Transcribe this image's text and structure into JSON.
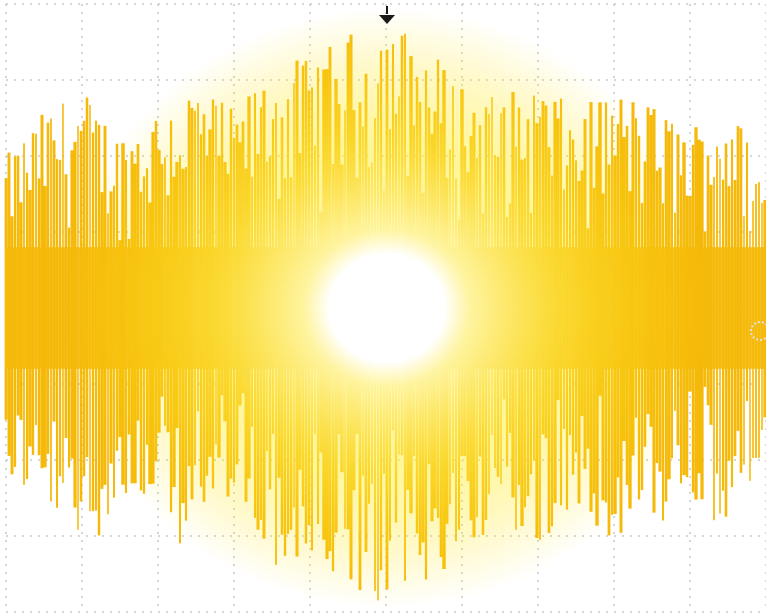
{
  "screen": {
    "background_color": "#ffffff",
    "grid_color": "#c8c8c8",
    "trace_color": "#f5b90a",
    "glow_color": "#fff26a",
    "core_color": "#ffffff",
    "marker_color": "#1a1a1a",
    "trigger_marker_icon": "down-arrow-marker-icon",
    "level_marker_icon": "right-edge-circle-marker-icon"
  },
  "chart_data": {
    "type": "area",
    "title": "",
    "xlabel": "",
    "ylabel": "",
    "grid": true,
    "grid_divisions": {
      "horizontal": 10,
      "vertical": 8
    },
    "xlim": [
      0,
      10
    ],
    "ylim": [
      -4,
      4
    ],
    "series": [
      {
        "name": "",
        "description_of_shape": "noise burst centered at 0, peak envelope about +/-3.8 divisions",
        "x": [
          0,
          0.5,
          1,
          1.5,
          2,
          2.5,
          3,
          3.5,
          4,
          4.5,
          5,
          5.5,
          6,
          6.5,
          7,
          7.5,
          8,
          8.5,
          9,
          9.5,
          10
        ],
        "upper_envelope": [
          2.0,
          2.6,
          2.9,
          2.3,
          2.7,
          3.0,
          2.6,
          3.2,
          3.3,
          3.6,
          3.9,
          3.5,
          3.0,
          2.8,
          3.0,
          2.6,
          2.9,
          2.7,
          2.4,
          2.8,
          1.7
        ],
        "lower_envelope": [
          -2.2,
          -2.8,
          -3.4,
          -2.5,
          -3.0,
          -3.2,
          -2.4,
          -3.5,
          -3.6,
          -3.9,
          -4.0,
          -3.8,
          -3.2,
          -2.9,
          -3.3,
          -2.6,
          -3.1,
          -3.0,
          -2.6,
          -3.2,
          -1.8
        ],
        "dense_band": [
          -0.8,
          0.8
        ]
      }
    ]
  }
}
